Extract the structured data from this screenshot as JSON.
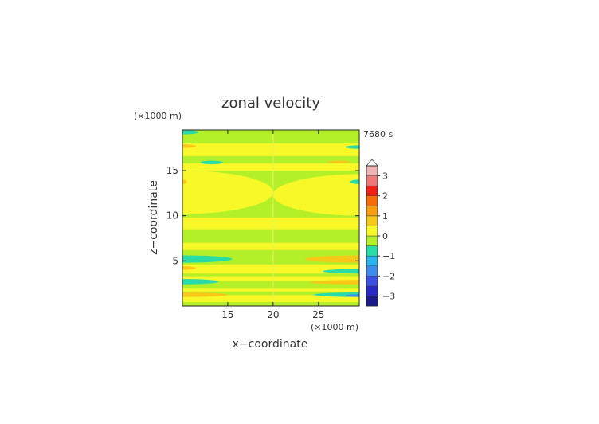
{
  "chart_data": {
    "type": "heatmap",
    "title": "zonal velocity",
    "xlabel": "x−coordinate",
    "ylabel": "z−coordinate",
    "x_unit": "(×1000 m)",
    "y_unit": "(×1000 m)",
    "time_label": "7680 s",
    "xlim": [
      10,
      29.5
    ],
    "ylim": [
      0,
      19.5
    ],
    "x_ticks": [
      15,
      20,
      25
    ],
    "x_tick_labels": [
      "15",
      "20",
      "25"
    ],
    "y_ticks": [
      5,
      10,
      15
    ],
    "y_tick_labels": [
      "5",
      "10",
      "15"
    ],
    "colorbar": {
      "levels": [
        -3.5,
        -3,
        -2.5,
        -2,
        -1.5,
        -1,
        -0.5,
        0,
        0.5,
        1,
        1.5,
        2,
        2.5,
        3,
        3.5
      ],
      "tick_values": [
        -3,
        -2,
        -1,
        0,
        1,
        2,
        3
      ],
      "tick_labels": [
        "−3",
        "−2",
        "−1",
        "0",
        "1",
        "2",
        "3"
      ],
      "colors": [
        "#1a1a8c",
        "#2828c8",
        "#3c50e6",
        "#3c8cf0",
        "#28b4ec",
        "#28dca8",
        "#b4f028",
        "#f8f828",
        "#f8c818",
        "#f89c10",
        "#f86c08",
        "#f01e14",
        "#f07878",
        "#f0b4b4"
      ],
      "extend_max": true
    },
    "background_band": {
      "value": 0.3,
      "color": "#f8f828"
    },
    "bands": [
      {
        "y": [
          0.0,
          0.45
        ],
        "value": -0.3,
        "color": "#b4f028"
      },
      {
        "y": [
          0.45,
          1.2
        ],
        "value": 0.3,
        "color": "#f8f828"
      },
      {
        "y": [
          1.2,
          1.6
        ],
        "value": -0.3,
        "color": "#b4f028"
      },
      {
        "y": [
          2.0,
          2.8
        ],
        "value": -0.3,
        "color": "#b4f028"
      },
      {
        "y": [
          3.3,
          3.6
        ],
        "value": -0.3,
        "color": "#b4f028"
      },
      {
        "y": [
          4.6,
          6.2
        ],
        "value": -0.3,
        "color": "#b4f028"
      },
      {
        "y": [
          7.0,
          8.5
        ],
        "value": -0.3,
        "color": "#b4f028"
      },
      {
        "y": [
          9.8,
          15.0
        ],
        "value": -0.3,
        "color": "#b4f028"
      },
      {
        "y": [
          15.8,
          16.6
        ],
        "value": -0.3,
        "color": "#b4f028"
      },
      {
        "y": [
          18.0,
          19.5
        ],
        "value": -0.3,
        "color": "#b4f028"
      }
    ],
    "patches": [
      {
        "x": [
          10.0,
          20.0
        ],
        "y": [
          10.2,
          15.0
        ],
        "value": 0.3,
        "color": "#f8f828"
      },
      {
        "x": [
          20.0,
          29.5
        ],
        "y": [
          10.0,
          14.6
        ],
        "value": 0.3,
        "color": "#f8f828"
      },
      {
        "x": [
          10.0,
          15.5
        ],
        "y": [
          4.8,
          5.6
        ],
        "value": -1.0,
        "color": "#28dca8"
      },
      {
        "x": [
          10.0,
          14.0
        ],
        "y": [
          2.4,
          3.0
        ],
        "value": -1.0,
        "color": "#28dca8"
      },
      {
        "x": [
          10.0,
          15.0
        ],
        "y": [
          1.0,
          1.5
        ],
        "value": 0.8,
        "color": "#f8c818"
      },
      {
        "x": [
          10.0,
          11.5
        ],
        "y": [
          4.0,
          4.4
        ],
        "value": 0.8,
        "color": "#f8c818"
      },
      {
        "x": [
          10.0,
          11.5
        ],
        "y": [
          17.5,
          17.9
        ],
        "value": 0.8,
        "color": "#f8c818"
      },
      {
        "x": [
          12.0,
          14.5
        ],
        "y": [
          15.7,
          16.1
        ],
        "value": -1.0,
        "color": "#28dca8"
      },
      {
        "x": [
          23.5,
          29.5
        ],
        "y": [
          4.8,
          5.6
        ],
        "value": 0.8,
        "color": "#f8c818"
      },
      {
        "x": [
          24.0,
          29.5
        ],
        "y": [
          2.4,
          2.9
        ],
        "value": 0.8,
        "color": "#f8c818"
      },
      {
        "x": [
          25.5,
          29.5
        ],
        "y": [
          3.6,
          4.1
        ],
        "value": -1.0,
        "color": "#28dca8"
      },
      {
        "x": [
          24.5,
          29.5
        ],
        "y": [
          1.0,
          1.5
        ],
        "value": -1.0,
        "color": "#28dca8"
      },
      {
        "x": [
          28.0,
          29.5
        ],
        "y": [
          1.0,
          1.3
        ],
        "value": -2.0,
        "color": "#3c8cf0"
      },
      {
        "x": [
          26.0,
          28.5
        ],
        "y": [
          15.8,
          16.1
        ],
        "value": 0.8,
        "color": "#f8c818"
      },
      {
        "x": [
          28.0,
          29.5
        ],
        "y": [
          17.4,
          17.8
        ],
        "value": -1.0,
        "color": "#28dca8"
      },
      {
        "x": [
          10.0,
          11.8
        ],
        "y": [
          19.0,
          19.5
        ],
        "value": -1.0,
        "color": "#28dca8"
      },
      {
        "x": [
          28.5,
          29.5
        ],
        "y": [
          13.5,
          14.0
        ],
        "value": -1.0,
        "color": "#28dca8"
      },
      {
        "x": [
          10.0,
          10.5
        ],
        "y": [
          13.5,
          14.0
        ],
        "value": 0.8,
        "color": "#f8c818"
      }
    ]
  }
}
